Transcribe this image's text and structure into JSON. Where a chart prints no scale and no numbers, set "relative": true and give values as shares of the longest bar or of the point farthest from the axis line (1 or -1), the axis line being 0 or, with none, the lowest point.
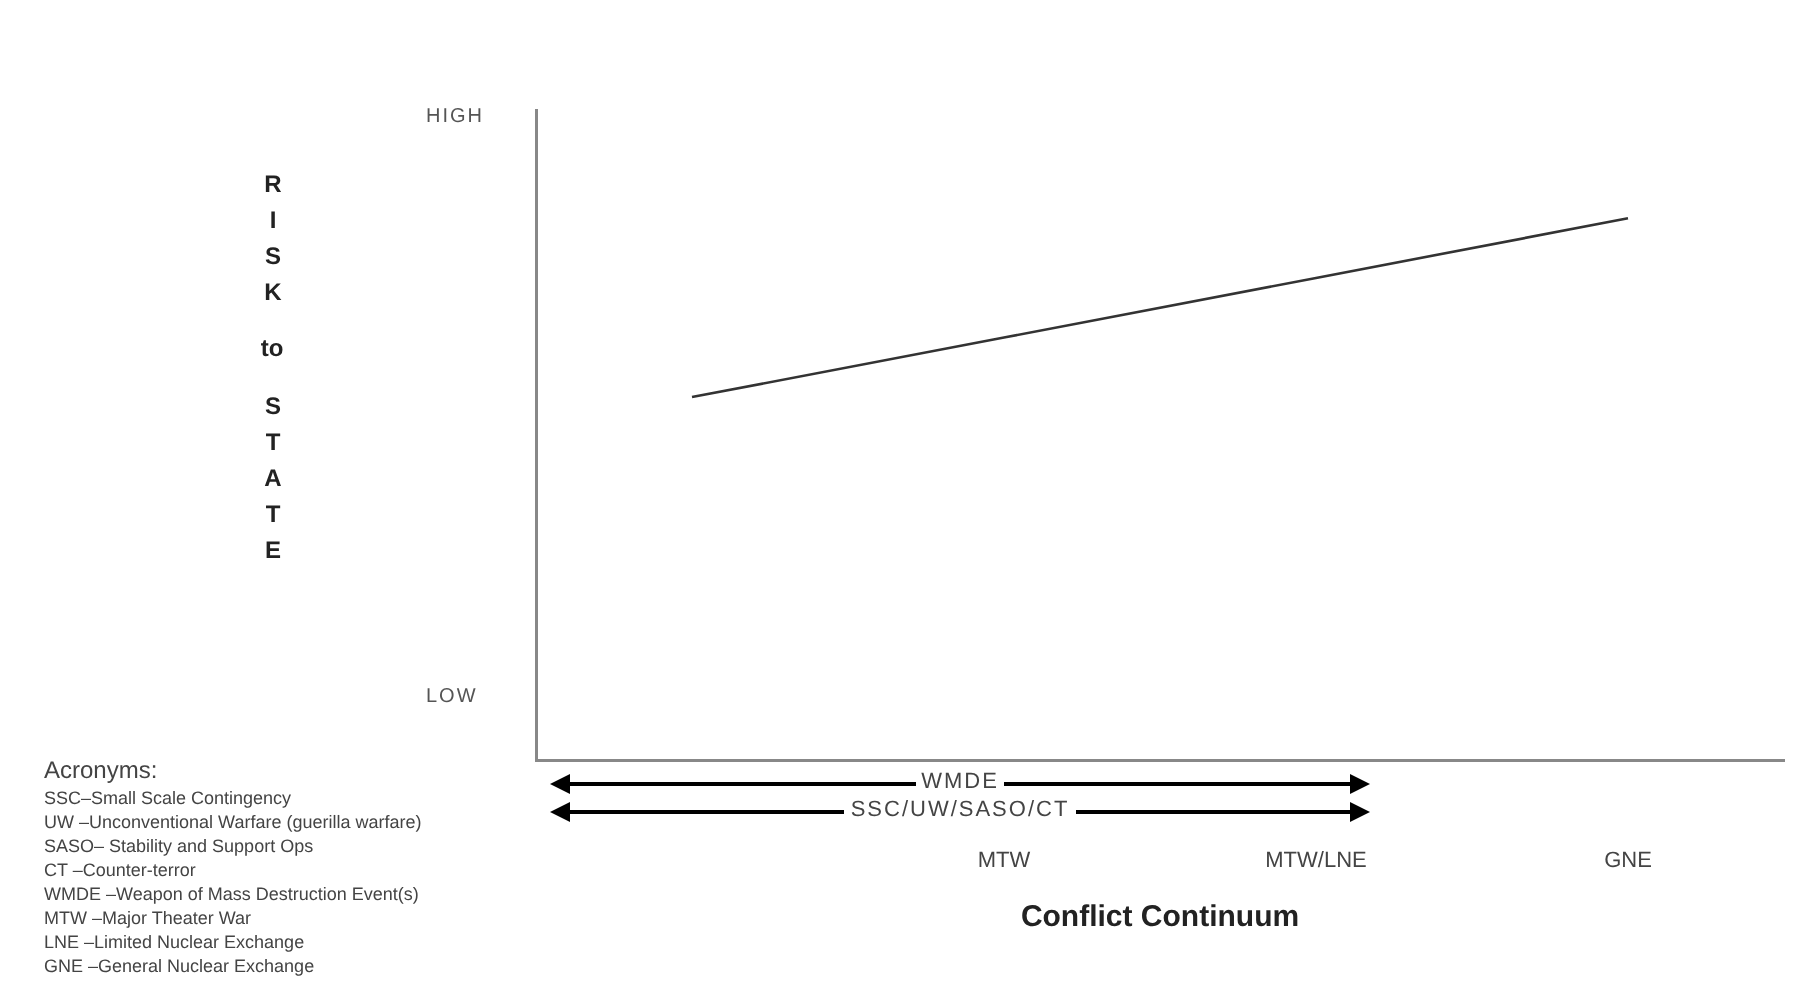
{
  "chart_data": {
    "type": "line",
    "relative": true,
    "xlabel": "Conflict Continuum",
    "ylabel": "RISK to STATE",
    "categories": [
      null,
      "MTW",
      "MTW/LNE",
      "GNE"
    ],
    "series": [
      {
        "color": "#333333",
        "values": [
          0.67,
          0.78,
          0.89,
          1
        ]
      }
    ],
    "grid": false,
    "legend": false,
    "marker": "none",
    "line_style": "solid",
    "annotations": [
      "HIGH",
      "LOW",
      "WMDE",
      "SSC/UW/SASO/CT",
      "Acronyms:",
      "SSC–Small Scale Contingency",
      "UW –Unconventional Warfare (guerilla warfare)",
      "SASO– Stability and Support Ops",
      "CT –Counter-terror",
      "WMDE –Weapon of Mass Destruction Event(s)",
      "MTW –Major Theater War",
      "LNE –Limited Nuclear Exchange",
      "GNE –General Nuclear Exchange"
    ]
  }
}
